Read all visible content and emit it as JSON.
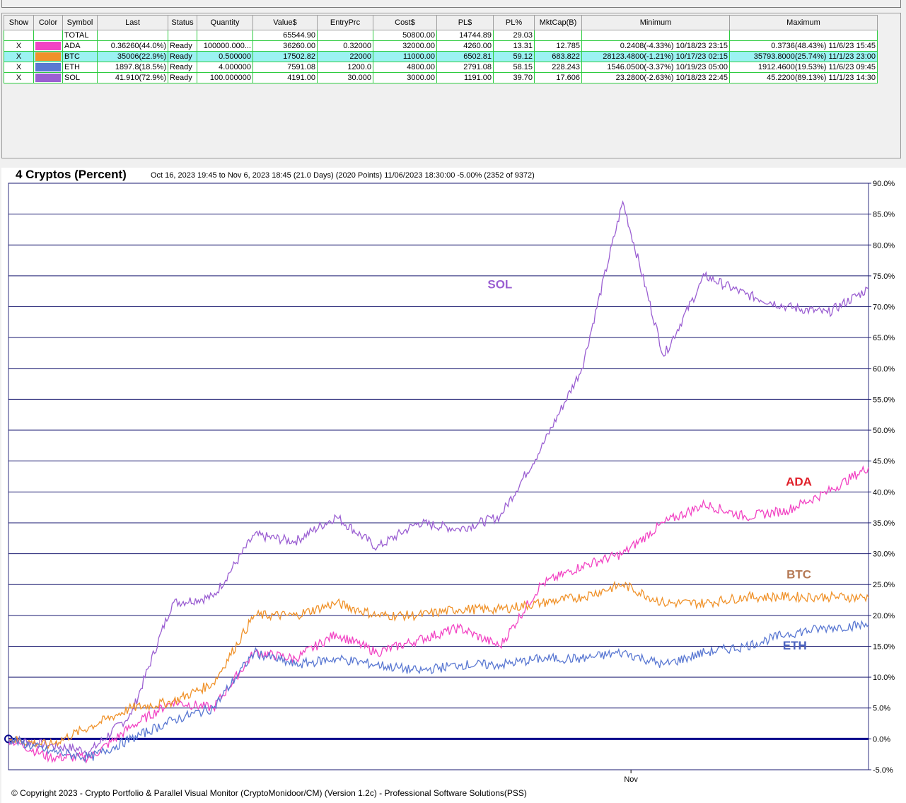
{
  "table": {
    "headers": [
      "Show",
      "Color",
      "Symbol",
      "Last",
      "Status",
      "Quantity",
      "Value$",
      "EntryPrc",
      "Cost$",
      "PL$",
      "PL%",
      "MktCap(B)",
      "Minimum",
      "Maximum"
    ],
    "rows": [
      {
        "show": "",
        "color": "",
        "symbol": "TOTAL",
        "last": "",
        "status": "",
        "quantity": "",
        "value": "65544.90",
        "entry": "",
        "cost": "50800.00",
        "pl": "14744.89",
        "plpct": "29.03",
        "mktcap": "",
        "minimum": "",
        "maximum": ""
      },
      {
        "show": "X",
        "color": "#f244c4",
        "symbol": "ADA",
        "last": "0.36260(44.0%)",
        "status": "Ready",
        "quantity": "100000.000...",
        "value": "36260.00",
        "entry": "0.32000",
        "cost": "32000.00",
        "pl": "4260.00",
        "plpct": "13.31",
        "mktcap": "12.785",
        "minimum": "0.2408(-4.33%) 10/18/23 23:15",
        "maximum": "0.3736(48.43%) 11/6/23 15:45"
      },
      {
        "show": "X",
        "color": "#f0922a",
        "symbol": "BTC",
        "last": "35006(22.9%)",
        "status": "Ready",
        "quantity": "0.500000",
        "value": "17502.82",
        "entry": "22000",
        "cost": "11000.00",
        "pl": "6502.81",
        "plpct": "59.12",
        "mktcap": "683.822",
        "minimum": "28123.4800(-1.21%) 10/17/23 02:15",
        "maximum": "35793.8000(25.74%) 11/1/23 23:00"
      },
      {
        "show": "X",
        "color": "#5a78d2",
        "symbol": "ETH",
        "last": "1897.8(18.5%)",
        "status": "Ready",
        "quantity": "4.000000",
        "value": "7591.08",
        "entry": "1200.0",
        "cost": "4800.00",
        "pl": "2791.08",
        "plpct": "58.15",
        "mktcap": "228.243",
        "minimum": "1546.0500(-3.37%) 10/19/23 05:00",
        "maximum": "1912.4600(19.53%) 11/6/23 09:45"
      },
      {
        "show": "X",
        "color": "#9b5fd2",
        "symbol": "SOL",
        "last": "41.910(72.9%)",
        "status": "Ready",
        "quantity": "100.000000",
        "value": "4191.00",
        "entry": "30.000",
        "cost": "3000.00",
        "pl": "1191.00",
        "plpct": "39.70",
        "mktcap": "17.606",
        "minimum": "23.2800(-2.63%) 10/18/23 22:45",
        "maximum": "45.2200(89.13%) 11/1/23 14:30"
      }
    ],
    "selected_row": 2
  },
  "chart": {
    "title": "4 Cryptos (Percent)",
    "subtitle": "Oct 16, 2023 19:45 to Nov 6, 2023 18:45 (21.0 Days) (2020 Points) 11/06/2023 18:30:00 -5.00% (2352 of 9372)",
    "copyright": "© Copyright 2023 - Crypto Portfolio & Parallel Visual Monitor (CryptoMonidoor/CM) (Version 1.2c) - Professional Software Solutions(PSS)"
  },
  "chart_data": {
    "type": "line",
    "ylim": [
      -5,
      90
    ],
    "y_ticks": [
      "90.0%",
      "85.0%",
      "80.0%",
      "75.0%",
      "70.0%",
      "65.0%",
      "60.0%",
      "55.0%",
      "50.0%",
      "45.0%",
      "40.0%",
      "35.0%",
      "30.0%",
      "25.0%",
      "20.0%",
      "15.0%",
      "10.0%",
      "5.0%",
      "0.0%",
      "-5.0%"
    ],
    "x_tick_label": "Nov",
    "x_tick_day": 15.2,
    "x_range_days": [
      0,
      21
    ],
    "x": [
      0,
      1,
      2,
      3,
      4,
      5,
      6,
      7,
      8,
      9,
      10,
      11,
      12,
      13,
      14,
      15,
      16,
      17,
      18,
      19,
      20,
      21
    ],
    "series": [
      {
        "name": "SOL",
        "color": "#9b5fd2",
        "label_color": "#9b5fd2",
        "values": [
          0,
          -1,
          -2,
          4,
          22,
          23,
          33,
          32,
          36,
          31,
          35,
          34,
          36,
          47,
          60,
          87,
          62,
          75,
          72,
          70,
          69,
          72.9
        ]
      },
      {
        "name": "ADA",
        "color": "#f244c4",
        "label_color": "#e0202a",
        "values": [
          0,
          -3,
          -3,
          2,
          6,
          5,
          14,
          13,
          17,
          14,
          16,
          18,
          15,
          25,
          28,
          30,
          35,
          38,
          36,
          37,
          40,
          44
        ]
      },
      {
        "name": "BTC",
        "color": "#f0922a",
        "label_color": "#b57a56",
        "values": [
          0,
          -1,
          2,
          5,
          6,
          9,
          20,
          20,
          22,
          20,
          20,
          21,
          21,
          22,
          23,
          25,
          22,
          22,
          23,
          23,
          23,
          22.9
        ]
      },
      {
        "name": "ETH",
        "color": "#5a78d2",
        "label_color": "#4a62c0",
        "values": [
          0,
          -2,
          -3,
          0,
          3,
          5,
          14,
          12,
          13,
          12,
          11,
          12,
          12,
          13,
          13,
          14,
          12,
          14,
          15,
          17,
          18,
          18.5
        ]
      }
    ]
  }
}
